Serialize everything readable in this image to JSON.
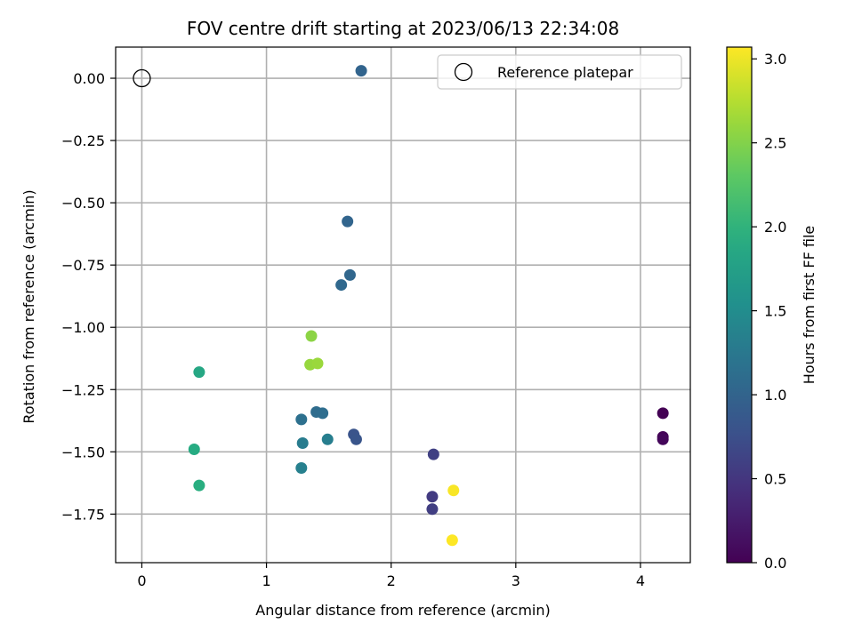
{
  "chart_data": {
    "type": "scatter",
    "title": "FOV centre drift starting at 2023/06/13 22:34:08",
    "xlabel": "Angular distance from reference (arcmin)",
    "ylabel": "Rotation from reference (arcmin)",
    "xlim": [
      -0.21,
      4.4
    ],
    "ylim": [
      -1.945,
      0.125
    ],
    "grid": true,
    "x_ticks": [
      0,
      1,
      2,
      3,
      4
    ],
    "x_tick_labels": [
      "0",
      "1",
      "2",
      "3",
      "4"
    ],
    "y_ticks": [
      0.0,
      -0.25,
      -0.5,
      -0.75,
      -1.0,
      -1.25,
      -1.5,
      -1.75
    ],
    "y_tick_labels": [
      "0.00",
      "−0.25",
      "−0.50",
      "−0.75",
      "−1.00",
      "−1.25",
      "−1.50",
      "−1.75"
    ],
    "legend": {
      "placement": "upper-right",
      "entries": [
        "Reference platepar"
      ]
    },
    "reference_point": {
      "x": 0.0,
      "y": 0.0,
      "marker": "hollow-circle",
      "edge_color": "#000000"
    },
    "colorbar": {
      "label": "Hours from first FF file",
      "colormap": "viridis",
      "min": 0.0,
      "max": 3.07,
      "ticks": [
        0.0,
        0.5,
        1.0,
        1.5,
        2.0,
        2.5,
        3.0
      ],
      "tick_labels": [
        "0.0",
        "0.5",
        "1.0",
        "1.5",
        "2.0",
        "2.5",
        "3.0"
      ]
    },
    "series": [
      {
        "points": [
          {
            "x": 4.18,
            "y": -1.345,
            "c": 0.0
          },
          {
            "x": 4.18,
            "y": -1.44,
            "c": 0.03
          },
          {
            "x": 4.18,
            "y": -1.45,
            "c": 0.06
          },
          {
            "x": 2.34,
            "y": -1.51,
            "c": 0.6
          },
          {
            "x": 2.33,
            "y": -1.68,
            "c": 0.55
          },
          {
            "x": 2.33,
            "y": -1.73,
            "c": 0.58
          },
          {
            "x": 1.7,
            "y": -1.43,
            "c": 0.8
          },
          {
            "x": 1.72,
            "y": -1.45,
            "c": 0.82
          },
          {
            "x": 1.76,
            "y": 0.03,
            "c": 1.0
          },
          {
            "x": 1.65,
            "y": -0.575,
            "c": 1.02
          },
          {
            "x": 1.67,
            "y": -0.79,
            "c": 1.04
          },
          {
            "x": 1.6,
            "y": -0.83,
            "c": 1.06
          },
          {
            "x": 1.4,
            "y": -1.34,
            "c": 1.1
          },
          {
            "x": 1.45,
            "y": -1.345,
            "c": 1.12
          },
          {
            "x": 1.28,
            "y": -1.37,
            "c": 1.15
          },
          {
            "x": 1.29,
            "y": -1.465,
            "c": 1.3
          },
          {
            "x": 1.49,
            "y": -1.45,
            "c": 1.32
          },
          {
            "x": 1.28,
            "y": -1.565,
            "c": 1.35
          },
          {
            "x": 0.46,
            "y": -1.18,
            "c": 1.85
          },
          {
            "x": 0.42,
            "y": -1.49,
            "c": 1.9
          },
          {
            "x": 0.46,
            "y": -1.635,
            "c": 1.95
          },
          {
            "x": 1.36,
            "y": -1.035,
            "c": 2.55
          },
          {
            "x": 1.35,
            "y": -1.15,
            "c": 2.6
          },
          {
            "x": 1.41,
            "y": -1.145,
            "c": 2.62
          },
          {
            "x": 2.5,
            "y": -1.655,
            "c": 3.05
          },
          {
            "x": 2.49,
            "y": -1.855,
            "c": 3.07
          }
        ]
      }
    ]
  }
}
